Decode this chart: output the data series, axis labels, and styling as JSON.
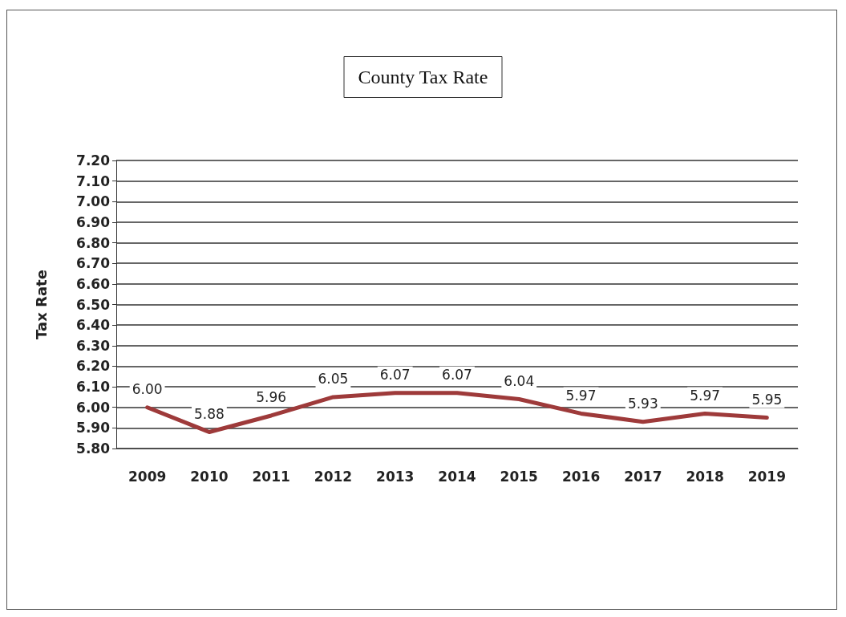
{
  "chart_data": {
    "type": "line",
    "title": "County Tax Rate",
    "ylabel": "Tax Rate",
    "categories": [
      "2009",
      "2010",
      "2011",
      "2012",
      "2013",
      "2014",
      "2015",
      "2016",
      "2017",
      "2018",
      "2019"
    ],
    "series": [
      {
        "color": "#9e3a3a",
        "values": [
          6.0,
          5.88,
          5.96,
          6.05,
          6.07,
          6.07,
          6.04,
          5.97,
          5.93,
          5.97,
          5.95
        ],
        "value_labels": [
          "6.00",
          "5.88",
          "5.96",
          "6.05",
          "6.07",
          "6.07",
          "6.04",
          "5.97",
          "5.93",
          "5.97",
          "5.95"
        ]
      }
    ],
    "ylim": [
      5.8,
      7.2
    ],
    "yticks": [
      {
        "value": 5.8,
        "label": "5.80"
      },
      {
        "value": 5.9,
        "label": "5.90"
      },
      {
        "value": 6.0,
        "label": "6.00"
      },
      {
        "value": 6.1,
        "label": "6.10"
      },
      {
        "value": 6.2,
        "label": "6.20"
      },
      {
        "value": 6.3,
        "label": "6.30"
      },
      {
        "value": 6.4,
        "label": "6.40"
      },
      {
        "value": 6.5,
        "label": "6.50"
      },
      {
        "value": 6.6,
        "label": "6.60"
      },
      {
        "value": 6.7,
        "label": "6.70"
      },
      {
        "value": 6.8,
        "label": "6.80"
      },
      {
        "value": 6.9,
        "label": "6.90"
      },
      {
        "value": 7.0,
        "label": "7.00"
      },
      {
        "value": 7.1,
        "label": "7.10"
      },
      {
        "value": 7.2,
        "label": "7.20"
      }
    ],
    "grid": true,
    "marker": "none",
    "line_style": "solid"
  }
}
